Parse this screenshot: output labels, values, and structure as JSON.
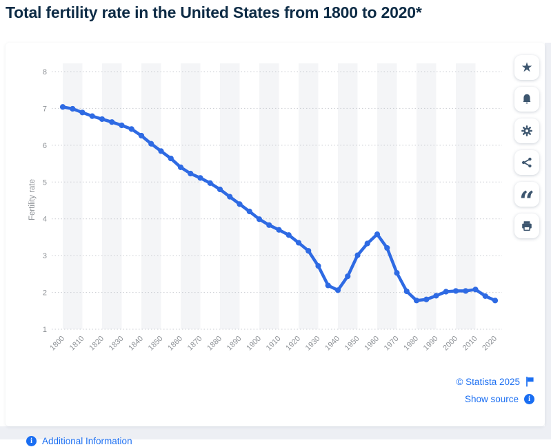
{
  "title": "Total fertility rate in the United States from 1800 to 2020*",
  "chart_data": {
    "type": "line",
    "title": "Total fertility rate in the United States from 1800 to 2020*",
    "xlabel": "",
    "ylabel": "Fertility rate",
    "ylim": [
      1,
      8
    ],
    "yticks": [
      1,
      2,
      3,
      4,
      5,
      6,
      7,
      8
    ],
    "xticks": [
      1800,
      1810,
      1820,
      1830,
      1840,
      1850,
      1860,
      1870,
      1880,
      1890,
      1900,
      1910,
      1920,
      1930,
      1940,
      1950,
      1960,
      1970,
      1980,
      1990,
      2000,
      2010,
      2020
    ],
    "grid": "horizontal-dotted",
    "legend_position": "none",
    "x": [
      1800,
      1805,
      1810,
      1815,
      1820,
      1825,
      1830,
      1835,
      1840,
      1845,
      1850,
      1855,
      1860,
      1865,
      1870,
      1875,
      1880,
      1885,
      1890,
      1895,
      1900,
      1905,
      1910,
      1915,
      1920,
      1925,
      1930,
      1935,
      1940,
      1945,
      1950,
      1955,
      1960,
      1965,
      1970,
      1975,
      1980,
      1985,
      1990,
      1995,
      2000,
      2005,
      2010,
      2015,
      2020
    ],
    "series": [
      {
        "name": "Fertility rate",
        "color": "#2e6ae3",
        "values": [
          7.04,
          6.99,
          6.89,
          6.79,
          6.71,
          6.63,
          6.54,
          6.44,
          6.26,
          6.04,
          5.84,
          5.64,
          5.4,
          5.23,
          5.11,
          4.97,
          4.8,
          4.6,
          4.4,
          4.2,
          3.99,
          3.83,
          3.7,
          3.56,
          3.35,
          3.13,
          2.72,
          2.19,
          2.06,
          2.44,
          3.01,
          3.33,
          3.58,
          3.21,
          2.53,
          2.03,
          1.78,
          1.81,
          1.91,
          2.02,
          2.04,
          2.04,
          2.08,
          1.9,
          1.78
        ]
      }
    ]
  },
  "toolbar": {
    "buttons": [
      {
        "id": "favorite",
        "icon": "star-icon"
      },
      {
        "id": "alerts",
        "icon": "bell-icon"
      },
      {
        "id": "settings",
        "icon": "gear-icon"
      },
      {
        "id": "share",
        "icon": "share-icon"
      },
      {
        "id": "cite",
        "icon": "quote-icon"
      },
      {
        "id": "print",
        "icon": "printer-icon"
      }
    ]
  },
  "footer": {
    "additional_information": "Additional Information",
    "copyright": "© Statista 2025",
    "show_source": "Show source"
  },
  "colors": {
    "line": "#2e6ae3",
    "title_text": "#0d2b45",
    "link_blue": "#1a6ef2",
    "toolbar_icon": "#3d566f",
    "axis_text": "#8d9196",
    "gridline": "#c9ccd1",
    "stripe": "#f4f5f7",
    "card_bg": "#ffffff",
    "page_edge_bg": "#edeff4"
  }
}
